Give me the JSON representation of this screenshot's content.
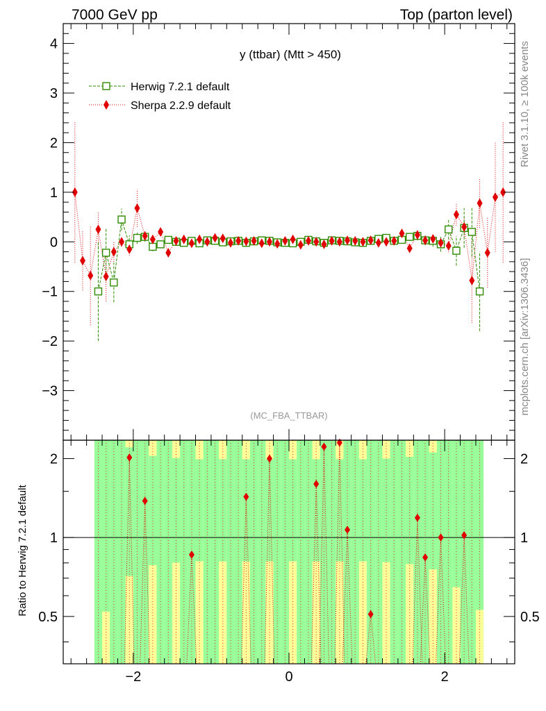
{
  "header": {
    "left": "7000 GeV pp",
    "right": "Top (parton level)"
  },
  "side": {
    "rivet": "Rivet 3.1.10, ≥ 100k events",
    "mcplots": "mcplots.cern.ch [arXiv:1306.3436]"
  },
  "chart_data": [
    {
      "type": "scatter",
      "title": "y (ttbar) (Mtt > 450)",
      "annotation": "(MC_FBA_TTBAR)",
      "xlim": [
        -2.9,
        2.9
      ],
      "ylim": [
        -4.0,
        4.4
      ],
      "yticks": [
        -3,
        -2,
        -1,
        0,
        1,
        2,
        3,
        4
      ],
      "legend_position": "top-left",
      "colors": {
        "herwig": "#2e8b00",
        "sherpa": "#e00000"
      },
      "series": [
        {
          "name": "Herwig 7.2.1 default",
          "marker": "open-square",
          "line": "dashed",
          "x": [
            -2.45,
            -2.35,
            -2.25,
            -2.15,
            -2.05,
            -1.95,
            -1.85,
            -1.75,
            -1.65,
            -1.55,
            -1.45,
            -1.35,
            -1.25,
            -1.15,
            -1.05,
            -0.95,
            -0.85,
            -0.75,
            -0.65,
            -0.55,
            -0.45,
            -0.35,
            -0.25,
            -0.15,
            -0.05,
            0.05,
            0.15,
            0.25,
            0.35,
            0.45,
            0.55,
            0.65,
            0.75,
            0.85,
            0.95,
            1.05,
            1.15,
            1.25,
            1.35,
            1.45,
            1.55,
            1.65,
            1.75,
            1.85,
            1.95,
            2.05,
            2.15,
            2.25,
            2.35,
            2.45
          ],
          "y": [
            -1.0,
            -0.22,
            -0.82,
            0.45,
            -0.05,
            0.08,
            0.1,
            -0.1,
            -0.05,
            0.04,
            0.0,
            -0.02,
            0.02,
            -0.03,
            0.03,
            0.02,
            -0.01,
            0.01,
            0.02,
            -0.02,
            0.01,
            0.03,
            0.02,
            -0.01,
            -0.02,
            -0.03,
            0.0,
            0.04,
            0.01,
            -0.02,
            0.03,
            0.02,
            0.01,
            -0.01,
            -0.02,
            0.02,
            0.06,
            0.08,
            0.02,
            0.04,
            0.1,
            0.12,
            0.03,
            0.02,
            -0.05,
            0.25,
            -0.18,
            0.28,
            0.2,
            -1.0
          ],
          "yerr": [
            1.0,
            0.5,
            0.4,
            0.22,
            0.18,
            0.12,
            0.1,
            0.09,
            0.08,
            0.07,
            0.06,
            0.05,
            0.05,
            0.05,
            0.05,
            0.05,
            0.05,
            0.05,
            0.05,
            0.05,
            0.05,
            0.05,
            0.05,
            0.05,
            0.05,
            0.05,
            0.05,
            0.05,
            0.05,
            0.05,
            0.05,
            0.05,
            0.05,
            0.05,
            0.05,
            0.05,
            0.05,
            0.06,
            0.06,
            0.07,
            0.08,
            0.09,
            0.1,
            0.12,
            0.15,
            0.2,
            0.3,
            0.4,
            0.5,
            0.8
          ]
        },
        {
          "name": "Sherpa 2.2.9 default",
          "marker": "filled-diamond",
          "line": "dotted",
          "x": [
            -2.75,
            -2.65,
            -2.55,
            -2.45,
            -2.35,
            -2.25,
            -2.15,
            -2.05,
            -1.95,
            -1.85,
            -1.75,
            -1.65,
            -1.55,
            -1.45,
            -1.35,
            -1.25,
            -1.15,
            -1.05,
            -0.95,
            -0.85,
            -0.75,
            -0.65,
            -0.55,
            -0.45,
            -0.35,
            -0.25,
            -0.15,
            -0.05,
            0.05,
            0.15,
            0.25,
            0.35,
            0.45,
            0.55,
            0.65,
            0.75,
            0.85,
            0.95,
            1.05,
            1.15,
            1.25,
            1.35,
            1.45,
            1.55,
            1.65,
            1.75,
            1.85,
            1.95,
            2.05,
            2.15,
            2.25,
            2.35,
            2.45,
            2.55,
            2.65,
            2.75
          ],
          "y": [
            1.0,
            -0.38,
            -0.68,
            0.25,
            -0.7,
            -0.2,
            0.0,
            -0.15,
            0.68,
            0.12,
            0.05,
            0.2,
            -0.22,
            0.02,
            0.05,
            -0.03,
            0.05,
            0.0,
            0.08,
            0.07,
            -0.02,
            0.02,
            0.01,
            0.02,
            -0.03,
            0.0,
            -0.04,
            0.02,
            0.05,
            -0.06,
            0.02,
            0.0,
            -0.05,
            0.02,
            0.0,
            0.03,
            0.02,
            0.0,
            0.03,
            -0.02,
            0.0,
            0.02,
            0.17,
            -0.13,
            0.14,
            0.03,
            0.06,
            -0.02,
            -0.08,
            0.55,
            0.3,
            -0.78,
            0.78,
            -0.22,
            0.9,
            1.0
          ],
          "yerr": [
            1.42,
            0.6,
            1.0,
            0.35,
            0.5,
            0.2,
            0.1,
            0.13,
            0.38,
            0.1,
            0.08,
            0.07,
            0.06,
            0.05,
            0.05,
            0.05,
            0.05,
            0.05,
            0.05,
            0.05,
            0.05,
            0.05,
            0.05,
            0.05,
            0.05,
            0.05,
            0.05,
            0.05,
            0.05,
            0.05,
            0.05,
            0.05,
            0.05,
            0.05,
            0.05,
            0.05,
            0.05,
            0.05,
            0.05,
            0.05,
            0.05,
            0.05,
            0.06,
            0.07,
            0.08,
            0.09,
            0.1,
            0.11,
            0.13,
            0.22,
            0.2,
            0.85,
            0.5,
            0.7,
            1.1,
            1.42
          ]
        }
      ]
    },
    {
      "type": "scatter",
      "ylabel": "Ratio to Herwig 7.2.1 default",
      "xlim": [
        -2.9,
        2.9
      ],
      "ylim": [
        0.33,
        2.35
      ],
      "xticks": [
        -2,
        0,
        2
      ],
      "yticks": [
        0.5,
        1,
        2
      ],
      "reference_line": 1,
      "band": {
        "x_edges": [
          -2.5,
          2.5
        ],
        "bin_width": 0.1,
        "colors": {
          "inner": "#99ff99",
          "outer": "#ffff99"
        }
      },
      "series": [
        {
          "name": "Sherpa 2.2.9 default",
          "x": [
            -2.05,
            -1.85,
            -1.25,
            -0.55,
            -0.25,
            0.35,
            0.45,
            0.65,
            0.75,
            1.05,
            1.65,
            1.75,
            1.95,
            2.25
          ],
          "y": [
            2.02,
            1.38,
            0.86,
            1.43,
            2.0,
            1.6,
            2.22,
            2.3,
            1.07,
            0.51,
            1.19,
            0.84,
            1.0,
            1.02
          ]
        }
      ]
    }
  ]
}
